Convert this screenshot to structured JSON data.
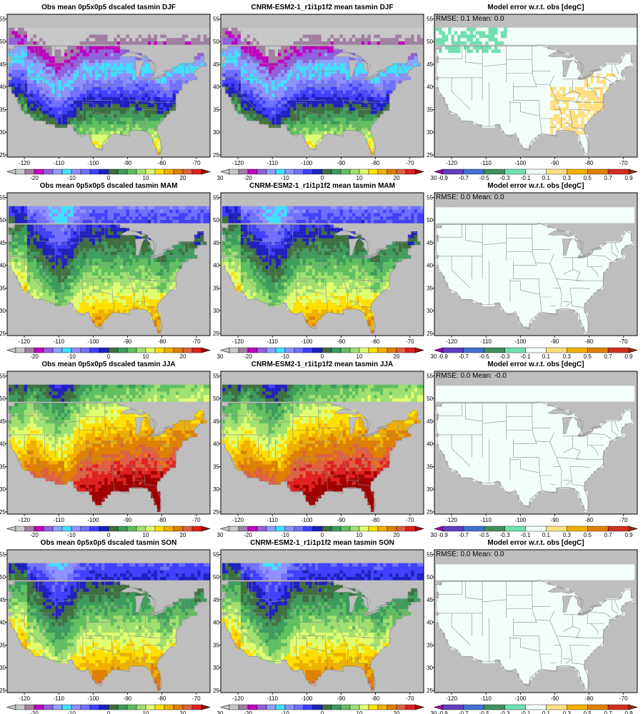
{
  "colors": {
    "temp_levels": [
      "#c8c8c8",
      "#a080a0",
      "#c000c0",
      "#9060e0",
      "#8ca0ff",
      "#40e0ff",
      "#9090ff",
      "#7070ff",
      "#4040ff",
      "#2020c0",
      "#3f6f3f",
      "#3c9c5c",
      "#60c060",
      "#a0e070",
      "#e0ff70",
      "#ffe000",
      "#f0b000",
      "#e08000",
      "#e06040",
      "#e02020",
      "#a00000"
    ],
    "err_levels": [
      "#9a00b0",
      "#6040c0",
      "#4070d0",
      "#3f8f5f",
      "#70e0b0",
      "#f4fffb",
      "#ffe080",
      "#f0b000",
      "#e08000",
      "#d03020",
      "#903010"
    ],
    "land_gray": "#bebebe",
    "state_lines": "#8a8a8a"
  },
  "chart_data": [
    {
      "type": "heatmap",
      "row": "DJF",
      "title": "Obs mean 0p5x0p5 dscaled tasmin DJF",
      "xlim": [
        -125,
        -66
      ],
      "ylim": [
        24.5,
        56
      ],
      "xticks": [
        "-120",
        "-110",
        "-100",
        "-90",
        "-80",
        "-70"
      ],
      "yticks": [
        "25",
        "30",
        "35",
        "40",
        "45",
        "50",
        "55"
      ],
      "colorbar_ticks": [
        "-20",
        "-10",
        "0",
        "10",
        "20",
        "30"
      ]
    },
    {
      "type": "heatmap",
      "row": "DJF",
      "title": "CNRM-ESM2-1_r1i1p1f2 mean tasmin DJF",
      "xlim": [
        -125,
        -66
      ],
      "ylim": [
        24.5,
        56
      ],
      "xticks": [
        "-120",
        "-110",
        "-100",
        "-90",
        "-80",
        "-70"
      ],
      "yticks": [
        "25",
        "30",
        "35",
        "40",
        "45",
        "50",
        "55"
      ],
      "colorbar_ticks": [
        "-20",
        "-10",
        "0",
        "10",
        "20",
        "30"
      ]
    },
    {
      "type": "heatmap",
      "row": "DJF",
      "title": "Model error w.r.t. obs [degC]",
      "annotation": "RMSE:  0.1   Mean:  0.0",
      "xlim": [
        -125,
        -66
      ],
      "ylim": [
        24.5,
        56
      ],
      "xticks": [
        "-120",
        "-110",
        "-100",
        "-90",
        "-80",
        "-70"
      ],
      "yticks": [
        "25",
        "30",
        "35",
        "40",
        "45",
        "50",
        "55"
      ],
      "colorbar_ticks": [
        "-0.9",
        "-0.7",
        "-0.5",
        "-0.3",
        "-0.1",
        "0.1",
        "0.3",
        "0.5",
        "0.7",
        "0.9"
      ]
    },
    {
      "type": "heatmap",
      "row": "MAM",
      "title": "Obs mean 0p5x0p5 dscaled tasmin MAM",
      "xlim": [
        -125,
        -66
      ],
      "ylim": [
        24.5,
        56
      ],
      "xticks": [
        "-120",
        "-110",
        "-100",
        "-90",
        "-80",
        "-70"
      ],
      "yticks": [
        "25",
        "30",
        "35",
        "40",
        "45",
        "50",
        "55"
      ],
      "colorbar_ticks": [
        "-20",
        "-10",
        "0",
        "10",
        "20",
        "30"
      ]
    },
    {
      "type": "heatmap",
      "row": "MAM",
      "title": "CNRM-ESM2-1_r1i1p1f2 mean tasmin MAM",
      "xlim": [
        -125,
        -66
      ],
      "ylim": [
        24.5,
        56
      ],
      "xticks": [
        "-120",
        "-110",
        "-100",
        "-90",
        "-80",
        "-70"
      ],
      "yticks": [
        "25",
        "30",
        "35",
        "40",
        "45",
        "50",
        "55"
      ],
      "colorbar_ticks": [
        "-20",
        "-10",
        "0",
        "10",
        "20",
        "30"
      ]
    },
    {
      "type": "heatmap",
      "row": "MAM",
      "title": "Model error w.r.t. obs [degC]",
      "annotation": "RMSE:  0.0   Mean:  0.0",
      "xlim": [
        -125,
        -66
      ],
      "ylim": [
        24.5,
        56
      ],
      "xticks": [
        "-120",
        "-110",
        "-100",
        "-90",
        "-80",
        "-70"
      ],
      "yticks": [
        "25",
        "30",
        "35",
        "40",
        "45",
        "50",
        "55"
      ],
      "colorbar_ticks": [
        "-0.9",
        "-0.7",
        "-0.5",
        "-0.3",
        "-0.1",
        "0.1",
        "0.3",
        "0.5",
        "0.7",
        "0.9"
      ]
    },
    {
      "type": "heatmap",
      "row": "JJA",
      "title": "Obs mean 0p5x0p5 dscaled tasmin JJA",
      "xlim": [
        -125,
        -66
      ],
      "ylim": [
        24.5,
        56
      ],
      "xticks": [
        "-120",
        "-110",
        "-100",
        "-90",
        "-80",
        "-70"
      ],
      "yticks": [
        "25",
        "30",
        "35",
        "40",
        "45",
        "50",
        "55"
      ],
      "colorbar_ticks": [
        "-20",
        "-10",
        "0",
        "10",
        "20",
        "30"
      ]
    },
    {
      "type": "heatmap",
      "row": "JJA",
      "title": "CNRM-ESM2-1_r1i1p1f2 mean tasmin JJA",
      "xlim": [
        -125,
        -66
      ],
      "ylim": [
        24.5,
        56
      ],
      "xticks": [
        "-120",
        "-110",
        "-100",
        "-90",
        "-80",
        "-70"
      ],
      "yticks": [
        "25",
        "30",
        "35",
        "40",
        "45",
        "50",
        "55"
      ],
      "colorbar_ticks": [
        "-20",
        "-10",
        "0",
        "10",
        "20",
        "30"
      ]
    },
    {
      "type": "heatmap",
      "row": "JJA",
      "title": "Model error w.r.t. obs [degC]",
      "annotation": "RMSE:  0.0   Mean:  -0.0",
      "xlim": [
        -125,
        -66
      ],
      "ylim": [
        24.5,
        56
      ],
      "xticks": [
        "-120",
        "-110",
        "-100",
        "-90",
        "-80",
        "-70"
      ],
      "yticks": [
        "25",
        "30",
        "35",
        "40",
        "45",
        "50",
        "55"
      ],
      "colorbar_ticks": [
        "-0.9",
        "-0.7",
        "-0.5",
        "-0.3",
        "-0.1",
        "0.1",
        "0.3",
        "0.5",
        "0.7",
        "0.9"
      ]
    },
    {
      "type": "heatmap",
      "row": "SON",
      "title": "Obs mean 0p5x0p5 dscaled tasmin SON",
      "xlim": [
        -125,
        -66
      ],
      "ylim": [
        24.5,
        56
      ],
      "xticks": [
        "-120",
        "-110",
        "-100",
        "-90",
        "-80",
        "-70"
      ],
      "yticks": [
        "25",
        "30",
        "35",
        "40",
        "45",
        "50",
        "55"
      ],
      "colorbar_ticks": [
        "-20",
        "-10",
        "0",
        "10",
        "20",
        "30"
      ]
    },
    {
      "type": "heatmap",
      "row": "SON",
      "title": "CNRM-ESM2-1_r1i1p1f2 mean tasmin SON",
      "xlim": [
        -125,
        -66
      ],
      "ylim": [
        24.5,
        56
      ],
      "xticks": [
        "-120",
        "-110",
        "-100",
        "-90",
        "-80",
        "-70"
      ],
      "yticks": [
        "25",
        "30",
        "35",
        "40",
        "45",
        "50",
        "55"
      ],
      "colorbar_ticks": [
        "-20",
        "-10",
        "0",
        "10",
        "20",
        "30"
      ]
    },
    {
      "type": "heatmap",
      "row": "SON",
      "title": "Model error w.r.t. obs [degC]",
      "annotation": "RMSE:  0.0   Mean:  0.0",
      "xlim": [
        -125,
        -66
      ],
      "ylim": [
        24.5,
        56
      ],
      "xticks": [
        "-120",
        "-110",
        "-100",
        "-90",
        "-80",
        "-70"
      ],
      "yticks": [
        "25",
        "30",
        "35",
        "40",
        "45",
        "50",
        "55"
      ],
      "colorbar_ticks": [
        "-0.9",
        "-0.7",
        "-0.5",
        "-0.3",
        "-0.1",
        "0.1",
        "0.3",
        "0.5",
        "0.7",
        "0.9"
      ]
    }
  ]
}
